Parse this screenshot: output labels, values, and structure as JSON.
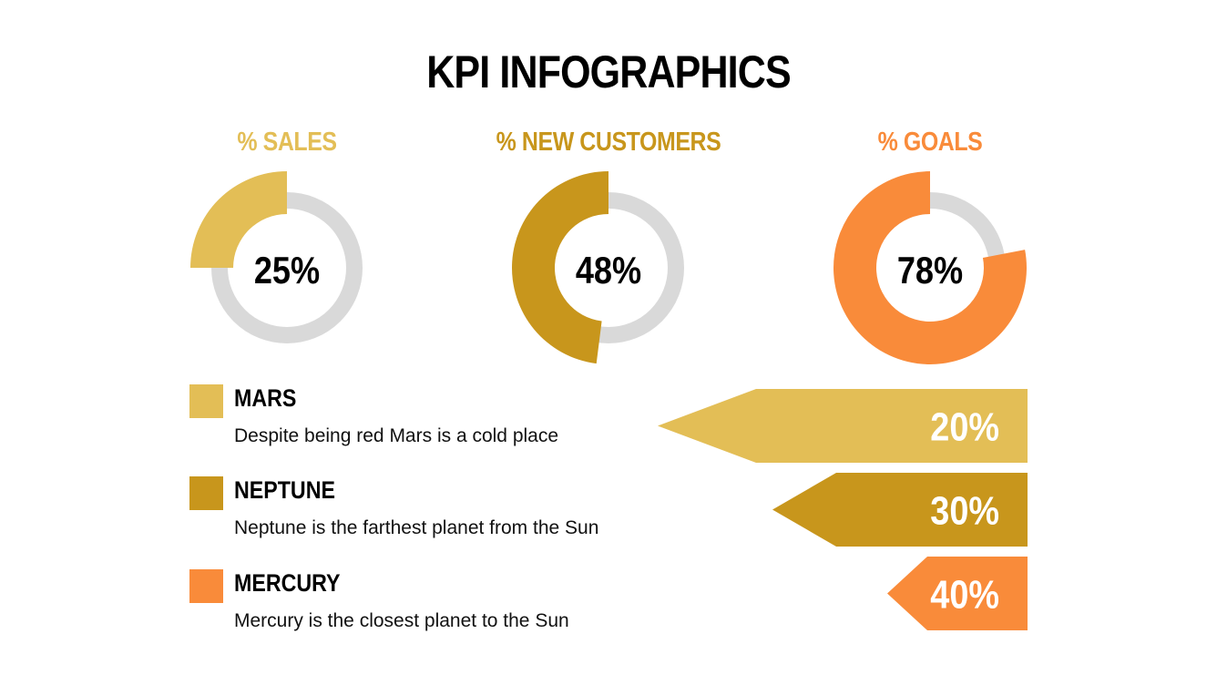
{
  "title": "KPI INFOGRAPHICS",
  "colors": {
    "mars": "#e3be56",
    "neptune": "#c8961c",
    "mercury": "#f98b3a",
    "track": "#d9d9d9",
    "text": "#000000"
  },
  "chart_data": [
    {
      "type": "pie",
      "title": "",
      "series": [
        {
          "name": "% SALES",
          "value": 25,
          "label": "25%",
          "color": "#e3be56"
        },
        {
          "name": "% NEW CUSTOMERS",
          "value": 48,
          "label": "48%",
          "color": "#c8961c"
        },
        {
          "name": "% GOALS",
          "value": 78,
          "label": "78%",
          "color": "#f98b3a"
        }
      ]
    },
    {
      "type": "bar",
      "title": "",
      "orientation": "horizontal",
      "categories": [
        "MARS",
        "NEPTUNE",
        "MERCURY"
      ],
      "values": [
        20,
        30,
        40
      ],
      "value_labels": [
        "20%",
        "30%",
        "40%"
      ],
      "colors": [
        "#e3be56",
        "#c8961c",
        "#f98b3a"
      ]
    }
  ],
  "legend": [
    {
      "name": "MARS",
      "description": "Despite being red Mars is a cold place",
      "color": "#e3be56"
    },
    {
      "name": "NEPTUNE",
      "description": "Neptune is the farthest planet from the Sun",
      "color": "#c8961c"
    },
    {
      "name": "MERCURY",
      "description": "Mercury is the closest planet to the Sun",
      "color": "#f98b3a"
    }
  ]
}
